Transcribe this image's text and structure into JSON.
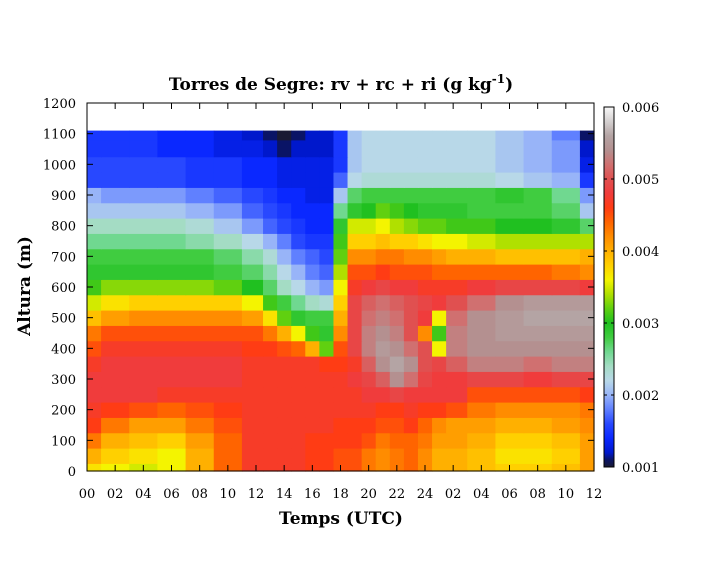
{
  "chart_data": {
    "type": "heatmap",
    "title": {
      "main": "Torres de Segre: rv + rc + ri (g kg",
      "sup": "-1",
      "end": ")"
    },
    "xlabel": "Temps (UTC)",
    "ylabel": "Altura (m)",
    "x_ticks": [
      "00",
      "02",
      "04",
      "06",
      "08",
      "10",
      "12",
      "14",
      "16",
      "18",
      "20",
      "22",
      "24",
      "02",
      "04",
      "06",
      "08",
      "10",
      "12"
    ],
    "x_range_hours": [
      0,
      36
    ],
    "y_ticks": [
      "0",
      "100",
      "200",
      "300",
      "400",
      "500",
      "600",
      "700",
      "800",
      "900",
      "1000",
      "1100",
      "1200"
    ],
    "y_range": [
      0,
      1200
    ],
    "data_top_m": 1110,
    "colorbar": {
      "ticks": [
        "0.001",
        "0.002",
        "0.003",
        "0.004",
        "0.005",
        "0.006"
      ],
      "range": [
        0.001,
        0.006
      ],
      "stops": [
        [
          0.001,
          "#1a1a33"
        ],
        [
          0.0011,
          "#0a1466"
        ],
        [
          0.0012,
          "#0018cc"
        ],
        [
          0.0014,
          "#0a28ff"
        ],
        [
          0.0016,
          "#2848ff"
        ],
        [
          0.0018,
          "#6080ff"
        ],
        [
          0.002,
          "#98b4f8"
        ],
        [
          0.0022,
          "#b8d8e8"
        ],
        [
          0.0024,
          "#a4dcc4"
        ],
        [
          0.0026,
          "#70d890"
        ],
        [
          0.0028,
          "#40cc40"
        ],
        [
          0.003,
          "#20c020"
        ],
        [
          0.0032,
          "#60d010"
        ],
        [
          0.0034,
          "#b0e000"
        ],
        [
          0.0036,
          "#f4f400"
        ],
        [
          0.0038,
          "#ffd000"
        ],
        [
          0.004,
          "#ffb000"
        ],
        [
          0.0042,
          "#ff8c00"
        ],
        [
          0.0044,
          "#ff6400"
        ],
        [
          0.0046,
          "#ff3c14"
        ],
        [
          0.0048,
          "#f03c3c"
        ],
        [
          0.005,
          "#e05050"
        ],
        [
          0.0052,
          "#d07070"
        ],
        [
          0.0054,
          "#b49090"
        ],
        [
          0.0056,
          "#b4a4a4"
        ],
        [
          0.0058,
          "#d4d0d0"
        ],
        [
          0.006,
          "#f8f8f8"
        ]
      ]
    },
    "grid": false,
    "heights_m": [
      0,
      50,
      100,
      150,
      200,
      250,
      300,
      350,
      400,
      450,
      500,
      550,
      600,
      650,
      700,
      750,
      800,
      850,
      900,
      950,
      1000,
      1050,
      1110
    ],
    "time_h": [
      0,
      2,
      4,
      6,
      8,
      10,
      12,
      13,
      14,
      15,
      16,
      17,
      18,
      19,
      20,
      21,
      22,
      23,
      24,
      25,
      26,
      28,
      30,
      32,
      34,
      36
    ],
    "values_g_kg": [
      [
        0.0037,
        0.0036,
        0.0035,
        0.0036,
        0.004,
        0.0044,
        0.0047,
        0.0047,
        0.0047,
        0.0047,
        0.0046,
        0.0046,
        0.0045,
        0.0045,
        0.0043,
        0.0042,
        0.0043,
        0.0044,
        0.0042,
        0.004,
        0.004,
        0.0039,
        0.0038,
        0.0038,
        0.0039,
        0.0041
      ],
      [
        0.004,
        0.0038,
        0.0037,
        0.0036,
        0.004,
        0.0044,
        0.0047,
        0.0047,
        0.0047,
        0.0047,
        0.0046,
        0.0046,
        0.0045,
        0.0045,
        0.0043,
        0.0042,
        0.0043,
        0.0044,
        0.0042,
        0.004,
        0.004,
        0.0039,
        0.0037,
        0.0037,
        0.0038,
        0.0041
      ],
      [
        0.0043,
        0.004,
        0.0039,
        0.0038,
        0.0041,
        0.0044,
        0.0047,
        0.0047,
        0.0047,
        0.0047,
        0.0046,
        0.0046,
        0.0046,
        0.0046,
        0.0045,
        0.0043,
        0.0044,
        0.0044,
        0.0043,
        0.0041,
        0.0041,
        0.004,
        0.0038,
        0.0038,
        0.0039,
        0.0041
      ],
      [
        0.0046,
        0.0043,
        0.0041,
        0.0041,
        0.0043,
        0.0045,
        0.0047,
        0.0047,
        0.0047,
        0.0047,
        0.0047,
        0.0047,
        0.0046,
        0.0046,
        0.0046,
        0.0045,
        0.0045,
        0.0046,
        0.0044,
        0.0042,
        0.0041,
        0.0041,
        0.004,
        0.004,
        0.0041,
        0.0042
      ],
      [
        0.0047,
        0.0046,
        0.0045,
        0.0044,
        0.0045,
        0.0046,
        0.0047,
        0.0047,
        0.0047,
        0.0047,
        0.0047,
        0.0047,
        0.0047,
        0.0047,
        0.0047,
        0.0046,
        0.0046,
        0.0047,
        0.0046,
        0.0046,
        0.0045,
        0.0043,
        0.0042,
        0.0042,
        0.0042,
        0.0043
      ],
      [
        0.0048,
        0.0048,
        0.0048,
        0.0047,
        0.0047,
        0.0047,
        0.0047,
        0.0047,
        0.0047,
        0.0047,
        0.0047,
        0.0047,
        0.0047,
        0.0047,
        0.0048,
        0.0048,
        0.0049,
        0.0048,
        0.0048,
        0.0048,
        0.0048,
        0.0045,
        0.0045,
        0.0045,
        0.0045,
        0.0046
      ],
      [
        0.0048,
        0.0048,
        0.0048,
        0.0048,
        0.0048,
        0.0048,
        0.0047,
        0.0047,
        0.0047,
        0.0047,
        0.0047,
        0.0047,
        0.0047,
        0.0048,
        0.0049,
        0.0051,
        0.0054,
        0.0052,
        0.0049,
        0.0048,
        0.0048,
        0.0049,
        0.0049,
        0.0048,
        0.0049,
        0.0049
      ],
      [
        0.0047,
        0.0048,
        0.0048,
        0.0048,
        0.0048,
        0.0048,
        0.0047,
        0.0047,
        0.0047,
        0.0047,
        0.0047,
        0.0046,
        0.0046,
        0.0047,
        0.0051,
        0.0054,
        0.0056,
        0.0054,
        0.005,
        0.0049,
        0.0051,
        0.0053,
        0.0053,
        0.0052,
        0.0053,
        0.0053
      ],
      [
        0.0045,
        0.0047,
        0.0047,
        0.0047,
        0.0047,
        0.0047,
        0.0046,
        0.0046,
        0.0045,
        0.0044,
        0.004,
        0.0032,
        0.0045,
        0.0049,
        0.0053,
        0.0055,
        0.0054,
        0.0052,
        0.005,
        0.0036,
        0.0053,
        0.0054,
        0.0054,
        0.0054,
        0.0054,
        0.0054
      ],
      [
        0.0043,
        0.0045,
        0.0045,
        0.0045,
        0.0045,
        0.0045,
        0.0045,
        0.0043,
        0.004,
        0.0036,
        0.0031,
        0.0029,
        0.0042,
        0.0049,
        0.0053,
        0.0054,
        0.0053,
        0.005,
        0.0042,
        0.0031,
        0.0053,
        0.0054,
        0.0055,
        0.0055,
        0.0055,
        0.0055
      ],
      [
        0.0039,
        0.0041,
        0.0042,
        0.0042,
        0.0042,
        0.0042,
        0.0041,
        0.0037,
        0.0032,
        0.0029,
        0.0028,
        0.0028,
        0.004,
        0.0049,
        0.0052,
        0.0053,
        0.0052,
        0.005,
        0.0048,
        0.0036,
        0.0052,
        0.0054,
        0.0055,
        0.0056,
        0.0056,
        0.0056
      ],
      [
        0.0035,
        0.0037,
        0.0038,
        0.0038,
        0.0038,
        0.0038,
        0.0036,
        0.0031,
        0.0028,
        0.0026,
        0.0024,
        0.0023,
        0.0038,
        0.0049,
        0.0051,
        0.0052,
        0.0051,
        0.005,
        0.0049,
        0.0048,
        0.005,
        0.0052,
        0.0054,
        0.0055,
        0.0055,
        0.0055
      ],
      [
        0.0031,
        0.0033,
        0.0033,
        0.0033,
        0.0033,
        0.0032,
        0.003,
        0.0027,
        0.0024,
        0.0022,
        0.002,
        0.0019,
        0.0036,
        0.0047,
        0.0048,
        0.0049,
        0.0048,
        0.0048,
        0.0047,
        0.0047,
        0.0047,
        0.0048,
        0.0049,
        0.0049,
        0.0049,
        0.0048
      ],
      [
        0.0029,
        0.0029,
        0.0029,
        0.0029,
        0.0029,
        0.0028,
        0.0027,
        0.0025,
        0.0022,
        0.002,
        0.0018,
        0.0017,
        0.0034,
        0.0045,
        0.0045,
        0.0046,
        0.0045,
        0.0045,
        0.0045,
        0.0044,
        0.0044,
        0.0044,
        0.0044,
        0.0044,
        0.0043,
        0.0042
      ],
      [
        0.0028,
        0.0028,
        0.0028,
        0.0028,
        0.0028,
        0.0027,
        0.0025,
        0.0023,
        0.002,
        0.0018,
        0.0017,
        0.0016,
        0.0032,
        0.0042,
        0.0042,
        0.0043,
        0.0043,
        0.0042,
        0.0042,
        0.0041,
        0.004,
        0.004,
        0.0039,
        0.0039,
        0.0039,
        0.004
      ],
      [
        0.0026,
        0.0026,
        0.0026,
        0.0026,
        0.0025,
        0.0024,
        0.0022,
        0.002,
        0.0018,
        0.0016,
        0.0015,
        0.0015,
        0.0031,
        0.0038,
        0.0038,
        0.0039,
        0.0038,
        0.0038,
        0.0037,
        0.0036,
        0.0036,
        0.0035,
        0.0034,
        0.0034,
        0.0034,
        0.0034
      ],
      [
        0.0024,
        0.0024,
        0.0024,
        0.0024,
        0.0023,
        0.0021,
        0.0019,
        0.0017,
        0.0016,
        0.0015,
        0.0014,
        0.0014,
        0.0029,
        0.0035,
        0.0035,
        0.0036,
        0.0034,
        0.0033,
        0.0032,
        0.0032,
        0.0031,
        0.0031,
        0.003,
        0.003,
        0.0029,
        0.0027
      ],
      [
        0.0021,
        0.0021,
        0.0021,
        0.0021,
        0.002,
        0.0019,
        0.0017,
        0.0016,
        0.0015,
        0.0014,
        0.0014,
        0.0014,
        0.0026,
        0.0029,
        0.003,
        0.0032,
        0.0031,
        0.003,
        0.0029,
        0.0029,
        0.0029,
        0.0028,
        0.0028,
        0.0028,
        0.0027,
        0.0021
      ],
      [
        0.002,
        0.0019,
        0.0019,
        0.0019,
        0.0018,
        0.0017,
        0.0016,
        0.0015,
        0.0014,
        0.0014,
        0.0013,
        0.0013,
        0.0021,
        0.0027,
        0.0028,
        0.0028,
        0.0028,
        0.0028,
        0.0028,
        0.0028,
        0.0028,
        0.0028,
        0.0029,
        0.0028,
        0.0026,
        0.0019
      ],
      [
        0.0016,
        0.0016,
        0.0016,
        0.0016,
        0.0015,
        0.0015,
        0.0014,
        0.0014,
        0.0013,
        0.0013,
        0.0013,
        0.0013,
        0.0017,
        0.0022,
        0.0023,
        0.0023,
        0.0023,
        0.0023,
        0.0023,
        0.0023,
        0.0023,
        0.0023,
        0.0022,
        0.0021,
        0.002,
        0.0015
      ],
      [
        0.0016,
        0.0016,
        0.0016,
        0.0016,
        0.0015,
        0.0015,
        0.0014,
        0.0014,
        0.0013,
        0.0013,
        0.0013,
        0.0013,
        0.0015,
        0.0021,
        0.0022,
        0.0022,
        0.0022,
        0.0022,
        0.0022,
        0.0022,
        0.0022,
        0.0022,
        0.0021,
        0.002,
        0.0019,
        0.0013
      ],
      [
        0.0015,
        0.0015,
        0.0015,
        0.0014,
        0.0014,
        0.0013,
        0.0013,
        0.0012,
        0.0011,
        0.0012,
        0.0012,
        0.0012,
        0.0015,
        0.0021,
        0.0022,
        0.0022,
        0.0022,
        0.0022,
        0.0022,
        0.0022,
        0.0022,
        0.0022,
        0.0021,
        0.002,
        0.0019,
        0.0012
      ],
      [
        0.0015,
        0.0015,
        0.0015,
        0.0014,
        0.0014,
        0.0013,
        0.0012,
        0.0011,
        0.001,
        0.0011,
        0.0012,
        0.0012,
        0.0015,
        0.0021,
        0.0022,
        0.0022,
        0.0022,
        0.0022,
        0.0022,
        0.0022,
        0.0022,
        0.0022,
        0.0021,
        0.002,
        0.0018,
        0.0011
      ]
    ]
  }
}
